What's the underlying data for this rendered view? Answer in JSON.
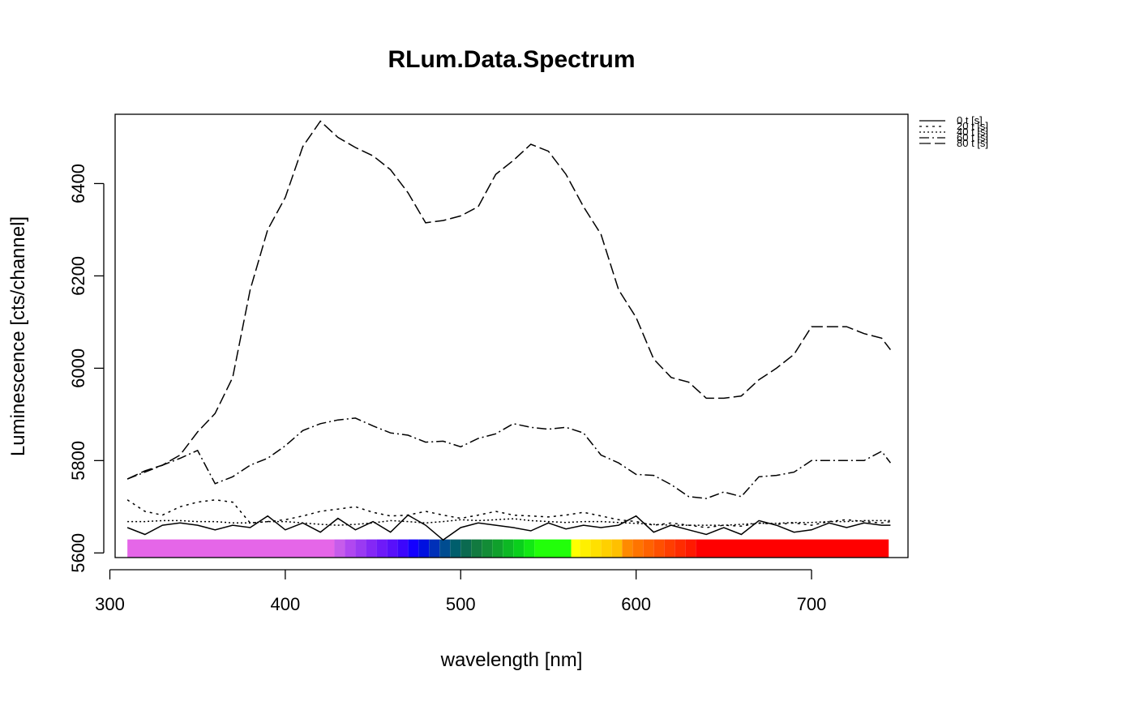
{
  "chart_data": {
    "type": "line",
    "title": "RLum.Data.Spectrum",
    "xlabel": "wavelength [nm]",
    "ylabel": "Luminescence [cts/channel]",
    "xlim": [
      303,
      755
    ],
    "ylim": [
      5590,
      6550
    ],
    "xticks": [
      300,
      400,
      500,
      600,
      700
    ],
    "yticks": [
      5600,
      5800,
      6000,
      6200,
      6400
    ],
    "grid": false,
    "legend_position": "outside-top-right",
    "legend": [
      "0 t [s]",
      "20 t [s]",
      "40 t [s]",
      "60 t [s]",
      "80 t [s]"
    ],
    "x": [
      310,
      320,
      330,
      340,
      350,
      360,
      370,
      380,
      390,
      400,
      410,
      420,
      430,
      440,
      450,
      460,
      470,
      480,
      490,
      500,
      510,
      520,
      530,
      540,
      550,
      560,
      570,
      580,
      590,
      600,
      610,
      620,
      630,
      640,
      650,
      660,
      670,
      680,
      690,
      700,
      710,
      720,
      730,
      740,
      745
    ],
    "series": [
      {
        "name": "0 t [s]",
        "dash": "",
        "values": [
          5655,
          5640,
          5660,
          5665,
          5660,
          5650,
          5660,
          5655,
          5680,
          5650,
          5665,
          5645,
          5675,
          5650,
          5668,
          5645,
          5682,
          5660,
          5628,
          5655,
          5665,
          5660,
          5655,
          5648,
          5665,
          5652,
          5660,
          5655,
          5660,
          5680,
          5645,
          5660,
          5650,
          5640,
          5655,
          5640,
          5670,
          5660,
          5645,
          5650,
          5665,
          5655,
          5665,
          5660,
          5660
        ]
      },
      {
        "name": "20 t [s]",
        "dash": "3,5",
        "values": [
          5715,
          5690,
          5682,
          5700,
          5710,
          5715,
          5710,
          5665,
          5668,
          5672,
          5680,
          5690,
          5695,
          5700,
          5688,
          5680,
          5682,
          5690,
          5682,
          5675,
          5682,
          5690,
          5682,
          5680,
          5678,
          5682,
          5688,
          5680,
          5672,
          5668,
          5660,
          5665,
          5660,
          5655,
          5660,
          5658,
          5665,
          5662,
          5665,
          5660,
          5668,
          5672,
          5668,
          5665,
          5668
        ]
      },
      {
        "name": "40 t [s]",
        "dash": "2,3",
        "values": [
          5668,
          5668,
          5670,
          5670,
          5668,
          5668,
          5665,
          5665,
          5668,
          5668,
          5665,
          5662,
          5660,
          5662,
          5665,
          5670,
          5668,
          5665,
          5668,
          5672,
          5670,
          5672,
          5674,
          5670,
          5668,
          5666,
          5668,
          5668,
          5666,
          5664,
          5662,
          5660,
          5660,
          5660,
          5660,
          5662,
          5664,
          5664,
          5666,
          5666,
          5668,
          5668,
          5670,
          5670,
          5670
        ]
      },
      {
        "name": "60 t [s]",
        "dash": "12,4,2,4",
        "values": [
          5760,
          5775,
          5790,
          5805,
          5822,
          5750,
          5765,
          5790,
          5805,
          5832,
          5865,
          5880,
          5888,
          5892,
          5875,
          5860,
          5855,
          5840,
          5842,
          5830,
          5848,
          5858,
          5880,
          5872,
          5868,
          5872,
          5860,
          5812,
          5795,
          5770,
          5768,
          5748,
          5722,
          5718,
          5732,
          5722,
          5765,
          5768,
          5775,
          5800,
          5800,
          5800,
          5800,
          5820,
          5795
        ]
      },
      {
        "name": "80 t [s]",
        "dash": "14,5",
        "values": [
          5760,
          5778,
          5790,
          5812,
          5862,
          5902,
          5980,
          6170,
          6300,
          6370,
          6480,
          6535,
          6500,
          6478,
          6460,
          6430,
          6380,
          6315,
          6320,
          6330,
          6350,
          6420,
          6450,
          6485,
          6470,
          6420,
          6350,
          6290,
          6170,
          6110,
          6020,
          5980,
          5970,
          5935,
          5935,
          5940,
          5975,
          6000,
          6030,
          6090,
          6090,
          6090,
          6075,
          6065,
          6040
        ]
      }
    ],
    "spectrum_bar": {
      "y": 5610,
      "segments": [
        {
          "from": 310,
          "to": 428,
          "color": "#E566E8"
        },
        {
          "from": 428,
          "to": 434,
          "color": "#C65CEB"
        },
        {
          "from": 434,
          "to": 440,
          "color": "#B048F0"
        },
        {
          "from": 440,
          "to": 446,
          "color": "#9A3AF2"
        },
        {
          "from": 446,
          "to": 452,
          "color": "#8428F5"
        },
        {
          "from": 452,
          "to": 458,
          "color": "#6E1AF8"
        },
        {
          "from": 458,
          "to": 464,
          "color": "#5810FA"
        },
        {
          "from": 464,
          "to": 470,
          "color": "#3C06FC"
        },
        {
          "from": 470,
          "to": 476,
          "color": "#1400FF"
        },
        {
          "from": 476,
          "to": 482,
          "color": "#0010E0"
        },
        {
          "from": 482,
          "to": 488,
          "color": "#0030B8"
        },
        {
          "from": 488,
          "to": 494,
          "color": "#004C90"
        },
        {
          "from": 494,
          "to": 500,
          "color": "#005E6C"
        },
        {
          "from": 500,
          "to": 506,
          "color": "#0B6A50"
        },
        {
          "from": 506,
          "to": 512,
          "color": "#127A40"
        },
        {
          "from": 512,
          "to": 518,
          "color": "#138C36"
        },
        {
          "from": 518,
          "to": 524,
          "color": "#10A02C"
        },
        {
          "from": 524,
          "to": 530,
          "color": "#0DB824"
        },
        {
          "from": 530,
          "to": 536,
          "color": "#0ACF1C"
        },
        {
          "from": 536,
          "to": 542,
          "color": "#12E814"
        },
        {
          "from": 542,
          "to": 563,
          "color": "#22FF0A"
        },
        {
          "from": 563,
          "to": 568,
          "color": "#FFFF00"
        },
        {
          "from": 568,
          "to": 574,
          "color": "#FFF000"
        },
        {
          "from": 574,
          "to": 580,
          "color": "#FFE000"
        },
        {
          "from": 580,
          "to": 586,
          "color": "#FFD000"
        },
        {
          "from": 586,
          "to": 592,
          "color": "#FFC000"
        },
        {
          "from": 592,
          "to": 598,
          "color": "#FF8A00"
        },
        {
          "from": 598,
          "to": 604,
          "color": "#FF7400"
        },
        {
          "from": 604,
          "to": 610,
          "color": "#FF6200"
        },
        {
          "from": 610,
          "to": 616,
          "color": "#FF5000"
        },
        {
          "from": 616,
          "to": 622,
          "color": "#FF3E00"
        },
        {
          "from": 622,
          "to": 628,
          "color": "#FF2C00"
        },
        {
          "from": 628,
          "to": 634,
          "color": "#FF1A00"
        },
        {
          "from": 634,
          "to": 744,
          "color": "#FF0000"
        }
      ]
    }
  }
}
